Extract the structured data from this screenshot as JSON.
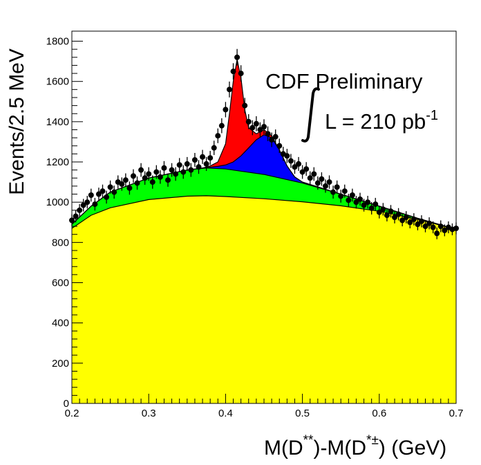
{
  "chart_data": {
    "type": "area",
    "xlabel": {
      "main": "M(D",
      "sup1": "**",
      "mid": ")-M(D",
      "sup2": "*±",
      "end": ") (GeV)"
    },
    "ylabel": "Events/2.5 MeV",
    "xlim": [
      0.2,
      0.7
    ],
    "ylim": [
      0,
      1850
    ],
    "xticks": [
      "0.2",
      "0.3",
      "0.4",
      "0.5",
      "0.6",
      "0.7"
    ],
    "yticks": [
      "0",
      "200",
      "400",
      "600",
      "800",
      "1000",
      "1200",
      "1400",
      "1600",
      "1800"
    ],
    "annotations": {
      "line1": "CDF Preliminary",
      "line2": "L = 210 pb",
      "line2_sup": "-1"
    },
    "colors": {
      "yellow": "#ffff00",
      "green": "#00ff00",
      "blue": "#0000ff",
      "red": "#ff0000"
    },
    "bands": [
      {
        "name": "",
        "color": "yellow",
        "points": [
          [
            0.2,
            870
          ],
          [
            0.225,
            935
          ],
          [
            0.25,
            972
          ],
          [
            0.3,
            1013
          ],
          [
            0.35,
            1030
          ],
          [
            0.375,
            1032
          ],
          [
            0.4,
            1028
          ],
          [
            0.45,
            1017
          ],
          [
            0.5,
            1002
          ],
          [
            0.55,
            982
          ],
          [
            0.6,
            955
          ],
          [
            0.65,
            915
          ],
          [
            0.7,
            865
          ]
        ]
      },
      {
        "name": "",
        "color": "green",
        "points": [
          [
            0.2,
            890
          ],
          [
            0.225,
            980
          ],
          [
            0.25,
            1050
          ],
          [
            0.3,
            1120
          ],
          [
            0.35,
            1160
          ],
          [
            0.375,
            1170
          ],
          [
            0.4,
            1165
          ],
          [
            0.45,
            1138
          ],
          [
            0.5,
            1095
          ],
          [
            0.55,
            1040
          ],
          [
            0.6,
            980
          ],
          [
            0.65,
            920
          ],
          [
            0.7,
            865
          ]
        ]
      },
      {
        "name": "",
        "color": "blue",
        "points": [
          [
            0.2,
            890
          ],
          [
            0.225,
            980
          ],
          [
            0.25,
            1050
          ],
          [
            0.3,
            1120
          ],
          [
            0.35,
            1160
          ],
          [
            0.37,
            1170
          ],
          [
            0.39,
            1178
          ],
          [
            0.4,
            1185
          ],
          [
            0.41,
            1200
          ],
          [
            0.42,
            1230
          ],
          [
            0.43,
            1270
          ],
          [
            0.44,
            1310
          ],
          [
            0.45,
            1335
          ],
          [
            0.46,
            1320
          ],
          [
            0.47,
            1260
          ],
          [
            0.48,
            1180
          ],
          [
            0.49,
            1125
          ],
          [
            0.5,
            1100
          ],
          [
            0.55,
            1040
          ],
          [
            0.6,
            980
          ],
          [
            0.65,
            920
          ],
          [
            0.7,
            865
          ]
        ]
      },
      {
        "name": "",
        "color": "red",
        "points": [
          [
            0.2,
            890
          ],
          [
            0.225,
            980
          ],
          [
            0.25,
            1050
          ],
          [
            0.3,
            1120
          ],
          [
            0.35,
            1160
          ],
          [
            0.37,
            1170
          ],
          [
            0.38,
            1180
          ],
          [
            0.39,
            1200
          ],
          [
            0.4,
            1290
          ],
          [
            0.405,
            1440
          ],
          [
            0.41,
            1600
          ],
          [
            0.415,
            1710
          ],
          [
            0.42,
            1620
          ],
          [
            0.425,
            1460
          ],
          [
            0.43,
            1370
          ],
          [
            0.44,
            1340
          ],
          [
            0.45,
            1360
          ],
          [
            0.46,
            1330
          ],
          [
            0.47,
            1260
          ],
          [
            0.48,
            1180
          ],
          [
            0.49,
            1125
          ],
          [
            0.5,
            1100
          ],
          [
            0.55,
            1040
          ],
          [
            0.6,
            980
          ],
          [
            0.65,
            920
          ],
          [
            0.7,
            865
          ]
        ]
      }
    ],
    "data_points": [
      [
        0.2,
        910
      ],
      [
        0.205,
        930
      ],
      [
        0.21,
        960
      ],
      [
        0.215,
        985
      ],
      [
        0.22,
        1000
      ],
      [
        0.225,
        1035
      ],
      [
        0.23,
        990
      ],
      [
        0.235,
        1040
      ],
      [
        0.24,
        1055
      ],
      [
        0.245,
        1025
      ],
      [
        0.25,
        1075
      ],
      [
        0.255,
        1050
      ],
      [
        0.26,
        1100
      ],
      [
        0.265,
        1090
      ],
      [
        0.27,
        1110
      ],
      [
        0.275,
        1070
      ],
      [
        0.28,
        1130
      ],
      [
        0.285,
        1095
      ],
      [
        0.29,
        1160
      ],
      [
        0.295,
        1120
      ],
      [
        0.3,
        1140
      ],
      [
        0.305,
        1100
      ],
      [
        0.31,
        1150
      ],
      [
        0.315,
        1125
      ],
      [
        0.32,
        1170
      ],
      [
        0.325,
        1110
      ],
      [
        0.33,
        1160
      ],
      [
        0.335,
        1140
      ],
      [
        0.34,
        1185
      ],
      [
        0.345,
        1150
      ],
      [
        0.35,
        1190
      ],
      [
        0.355,
        1160
      ],
      [
        0.36,
        1210
      ],
      [
        0.365,
        1175
      ],
      [
        0.37,
        1225
      ],
      [
        0.375,
        1190
      ],
      [
        0.38,
        1220
      ],
      [
        0.385,
        1270
      ],
      [
        0.39,
        1330
      ],
      [
        0.395,
        1380
      ],
      [
        0.4,
        1460
      ],
      [
        0.405,
        1560
      ],
      [
        0.41,
        1650
      ],
      [
        0.415,
        1720
      ],
      [
        0.42,
        1640
      ],
      [
        0.425,
        1480
      ],
      [
        0.43,
        1400
      ],
      [
        0.435,
        1370
      ],
      [
        0.44,
        1390
      ],
      [
        0.445,
        1360
      ],
      [
        0.45,
        1375
      ],
      [
        0.455,
        1340
      ],
      [
        0.46,
        1310
      ],
      [
        0.465,
        1325
      ],
      [
        0.47,
        1280
      ],
      [
        0.475,
        1240
      ],
      [
        0.48,
        1230
      ],
      [
        0.485,
        1205
      ],
      [
        0.49,
        1175
      ],
      [
        0.495,
        1190
      ],
      [
        0.5,
        1150
      ],
      [
        0.505,
        1165
      ],
      [
        0.51,
        1120
      ],
      [
        0.515,
        1140
      ],
      [
        0.52,
        1095
      ],
      [
        0.525,
        1115
      ],
      [
        0.53,
        1080
      ],
      [
        0.535,
        1100
      ],
      [
        0.54,
        1050
      ],
      [
        0.545,
        1075
      ],
      [
        0.55,
        1030
      ],
      [
        0.555,
        1055
      ],
      [
        0.56,
        1010
      ],
      [
        0.565,
        1035
      ],
      [
        0.57,
        1000
      ],
      [
        0.575,
        1015
      ],
      [
        0.58,
        985
      ],
      [
        0.585,
        1000
      ],
      [
        0.59,
        970
      ],
      [
        0.595,
        990
      ],
      [
        0.6,
        950
      ],
      [
        0.605,
        965
      ],
      [
        0.61,
        935
      ],
      [
        0.615,
        955
      ],
      [
        0.62,
        925
      ],
      [
        0.625,
        940
      ],
      [
        0.63,
        910
      ],
      [
        0.635,
        925
      ],
      [
        0.64,
        900
      ],
      [
        0.645,
        915
      ],
      [
        0.65,
        890
      ],
      [
        0.655,
        905
      ],
      [
        0.66,
        880
      ],
      [
        0.665,
        895
      ],
      [
        0.67,
        875
      ],
      [
        0.675,
        845
      ],
      [
        0.68,
        880
      ],
      [
        0.685,
        860
      ],
      [
        0.69,
        875
      ],
      [
        0.695,
        865
      ],
      [
        0.7,
        870
      ]
    ]
  }
}
